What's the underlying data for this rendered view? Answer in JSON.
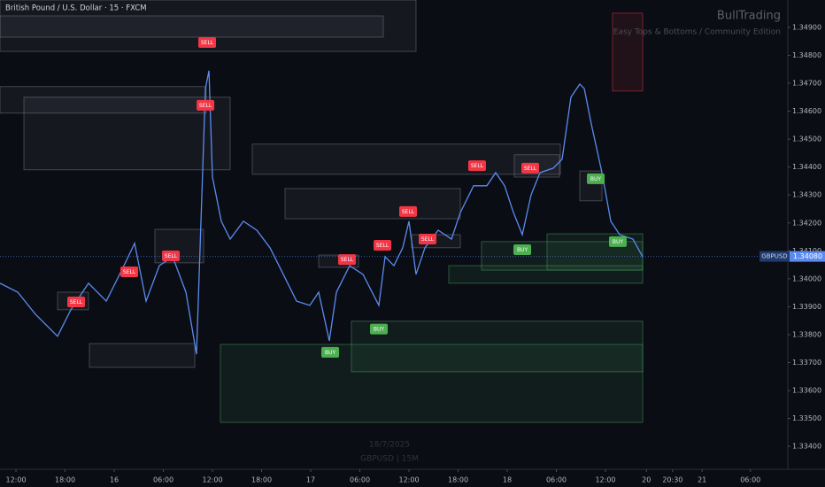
{
  "chart_data": {
    "type": "line",
    "title": "British Pound / U.S. Dollar · 15 · FXCM",
    "watermark": "BullTrading",
    "subtitle": "Easy Tops & Bottoms / Community Edition",
    "footer_date": "18/7/2025",
    "footer_symbol": "GBPUSD | 15M",
    "symbol": "GBPUSD",
    "last_price": {
      "value": 1.3408,
      "label": "1.34080"
    },
    "series": [
      {
        "color": "#5b8bf0",
        "x": [
          -1.95,
          0.22,
          2.38,
          5.08,
          6.7,
          8.86,
          11.03,
          13.19,
          14.49,
          15.89,
          17.51,
          19.14,
          20.76,
          22.05,
          23.14,
          23.57,
          24.0,
          25.08,
          26.16,
          27.78,
          29.41,
          31.03,
          32.65,
          34.27,
          35.89,
          36.97,
          38.27,
          39.14,
          40.76,
          42.38,
          44.32,
          45.08,
          46.16,
          47.24,
          48.0,
          48.86,
          49.95,
          51.57,
          53.19,
          54.27,
          55.89,
          57.51,
          58.59,
          59.68,
          60.76,
          61.84,
          62.92,
          64.0,
          65.62,
          66.7,
          67.78,
          68.86,
          69.41,
          70.27,
          71.57,
          72.65,
          73.73,
          75.35,
          76.54
        ],
        "values": [
          1.33984,
          1.33952,
          1.33873,
          1.33794,
          1.33889,
          1.33984,
          1.3392,
          1.34047,
          1.34127,
          1.3392,
          1.34047,
          1.34079,
          1.33952,
          1.3373,
          1.34681,
          1.34745,
          1.34364,
          1.34206,
          1.34142,
          1.34206,
          1.34174,
          1.34111,
          1.34016,
          1.3392,
          1.33905,
          1.33952,
          1.33778,
          1.33952,
          1.34047,
          1.34016,
          1.33905,
          1.34079,
          1.34047,
          1.34111,
          1.34206,
          1.34016,
          1.34111,
          1.34174,
          1.34142,
          1.34237,
          1.34333,
          1.34333,
          1.3438,
          1.34333,
          1.34237,
          1.34158,
          1.34301,
          1.3438,
          1.34396,
          1.34428,
          1.3465,
          1.34697,
          1.34681,
          1.34554,
          1.3438,
          1.34206,
          1.34158,
          1.34142,
          1.34079
        ]
      }
    ],
    "zones": [
      {
        "x": [
          -1.95,
          48.86
        ],
        "y": [
          1.34998,
          1.34814
        ],
        "color": "#6a6d78"
      },
      {
        "x": [
          -1.95,
          44.86
        ],
        "y": [
          1.34941,
          1.34865
        ],
        "color": "#6a6d78"
      },
      {
        "x": [
          -1.95,
          23.24
        ],
        "y": [
          1.34688,
          1.34593
        ],
        "color": "#6a6d78"
      },
      {
        "x": [
          0.97,
          26.16
        ],
        "y": [
          1.3465,
          1.3439
        ],
        "color": "#6a6d78"
      },
      {
        "x": [
          28.86,
          66.49
        ],
        "y": [
          1.34482,
          1.34374
        ],
        "color": "#6a6d78"
      },
      {
        "x": [
          32.86,
          54.27
        ],
        "y": [
          1.34323,
          1.34215
        ],
        "color": "#6a6d78"
      },
      {
        "x": [
          16.97,
          22.92
        ],
        "y": [
          1.34177,
          1.34057
        ],
        "color": "#6a6d78"
      },
      {
        "x": [
          36.97,
          41.84
        ],
        "y": [
          1.34085,
          1.34041
        ],
        "color": "#6a6d78"
      },
      {
        "x": [
          5.08,
          8.86
        ],
        "y": [
          1.33952,
          1.33889
        ],
        "color": "#6a6d78"
      },
      {
        "x": [
          8.97,
          21.84
        ],
        "y": [
          1.33768,
          1.33683
        ],
        "color": "#6a6d78"
      },
      {
        "x": [
          60.86,
          66.38
        ],
        "y": [
          1.34444,
          1.34364
        ],
        "color": "#6a6d78"
      },
      {
        "x": [
          68.86,
          71.57
        ],
        "y": [
          1.34386,
          1.34279
        ],
        "color": "#6a6d78"
      },
      {
        "x": [
          48.32,
          54.27
        ],
        "y": [
          1.34158,
          1.34111
        ],
        "color": "#6a6d78"
      },
      {
        "x": [
          24.97,
          76.54
        ],
        "y": [
          1.33765,
          1.33486
        ],
        "color": "#3f8f5a"
      },
      {
        "x": [
          40.97,
          76.54
        ],
        "y": [
          1.33848,
          1.33667
        ],
        "color": "#3f8f5a"
      },
      {
        "x": [
          52.86,
          76.54
        ],
        "y": [
          1.34047,
          1.33984
        ],
        "color": "#3f8f5a"
      },
      {
        "x": [
          56.86,
          76.54
        ],
        "y": [
          1.34133,
          1.34031
        ],
        "color": "#3f8f5a"
      },
      {
        "x": [
          64.86,
          76.54
        ],
        "y": [
          1.34161,
          1.34031
        ],
        "color": "#3f8f5a"
      },
      {
        "x": [
          72.86,
          76.54
        ],
        "y": [
          1.34951,
          1.34672
        ],
        "color": "#c2353f"
      }
    ],
    "signals": [
      {
        "label": "SELL",
        "x": 23.35,
        "y": 1.34846,
        "color": "#f23645"
      },
      {
        "label": "SELL",
        "x": 23.14,
        "y": 1.34621,
        "color": "#f23645"
      },
      {
        "label": "SELL",
        "x": 13.84,
        "y": 1.34025,
        "color": "#f23645"
      },
      {
        "label": "SELL",
        "x": 18.92,
        "y": 1.34082,
        "color": "#f23645"
      },
      {
        "label": "SELL",
        "x": 7.35,
        "y": 1.33917,
        "color": "#f23645"
      },
      {
        "label": "SELL",
        "x": 40.43,
        "y": 1.34069,
        "color": "#f23645"
      },
      {
        "label": "SELL",
        "x": 44.76,
        "y": 1.3412,
        "color": "#f23645"
      },
      {
        "label": "SELL",
        "x": 47.89,
        "y": 1.34241,
        "color": "#f23645"
      },
      {
        "label": "SELL",
        "x": 50.27,
        "y": 1.34142,
        "color": "#f23645"
      },
      {
        "label": "SELL",
        "x": 56.32,
        "y": 1.34405,
        "color": "#f23645"
      },
      {
        "label": "SELL",
        "x": 62.81,
        "y": 1.34396,
        "color": "#f23645"
      },
      {
        "label": "BUY",
        "x": 38.38,
        "y": 1.33737,
        "color": "#4caf50"
      },
      {
        "label": "BUY",
        "x": 44.32,
        "y": 1.3382,
        "color": "#4caf50"
      },
      {
        "label": "BUY",
        "x": 61.84,
        "y": 1.34104,
        "color": "#4caf50"
      },
      {
        "label": "BUY",
        "x": 70.81,
        "y": 1.34358,
        "color": "#4caf50"
      },
      {
        "label": "BUY",
        "x": 73.51,
        "y": 1.34133,
        "color": "#4caf50"
      }
    ],
    "xlim": [
      -1.95,
      94.27
    ],
    "ylim": [
      1.33318,
      1.34998
    ],
    "xticks": [
      {
        "value": 0,
        "label": "12:00"
      },
      {
        "value": 6,
        "label": "18:00"
      },
      {
        "value": 12,
        "label": "16"
      },
      {
        "value": 18,
        "label": "06:00"
      },
      {
        "value": 24,
        "label": "12:00"
      },
      {
        "value": 30,
        "label": "18:00"
      },
      {
        "value": 36,
        "label": "17"
      },
      {
        "value": 42,
        "label": "06:00"
      },
      {
        "value": 48,
        "label": "12:00"
      },
      {
        "value": 54,
        "label": "18:00"
      },
      {
        "value": 60,
        "label": "18"
      },
      {
        "value": 66,
        "label": "06:00"
      },
      {
        "value": 72,
        "label": "12:00"
      },
      {
        "value": 77,
        "label": "20"
      },
      {
        "value": 80.2,
        "label": "20:30"
      },
      {
        "value": 83.8,
        "label": "21"
      },
      {
        "value": 89.7,
        "label": "06:00"
      }
    ],
    "yticks": [
      {
        "value": 1.349,
        "label": "1.34900"
      },
      {
        "value": 1.348,
        "label": "1.34800"
      },
      {
        "value": 1.347,
        "label": "1.34700"
      },
      {
        "value": 1.346,
        "label": "1.34600"
      },
      {
        "value": 1.345,
        "label": "1.34500"
      },
      {
        "value": 1.344,
        "label": "1.34400"
      },
      {
        "value": 1.343,
        "label": "1.34300"
      },
      {
        "value": 1.342,
        "label": "1.34200"
      },
      {
        "value": 1.341,
        "label": "1.34100"
      },
      {
        "value": 1.34,
        "label": "1.34000"
      },
      {
        "value": 1.339,
        "label": "1.33900"
      },
      {
        "value": 1.338,
        "label": "1.33800"
      },
      {
        "value": 1.337,
        "label": "1.33700"
      },
      {
        "value": 1.336,
        "label": "1.33600"
      },
      {
        "value": 1.335,
        "label": "1.33500"
      },
      {
        "value": 1.334,
        "label": "1.33400"
      }
    ],
    "grid": false
  }
}
